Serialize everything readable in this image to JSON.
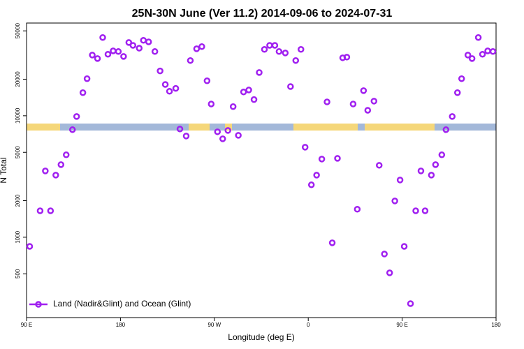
{
  "chart_data": {
    "type": "scatter",
    "title": "25N-30N June (Ver 11.2)   2014-09-06 to 2024-07-31",
    "x_label": "Longitude (deg E)",
    "y_label": "N Total",
    "x": [
      93,
      103,
      108,
      113,
      118,
      123,
      128,
      134,
      138,
      144,
      148,
      153,
      158,
      163,
      168,
      173,
      178,
      183,
      188,
      192,
      198,
      202,
      207,
      213,
      218,
      223,
      227,
      233,
      237,
      243,
      247,
      253,
      258,
      263,
      267,
      273,
      278,
      283,
      288,
      293,
      298,
      303,
      308,
      313,
      318,
      323,
      328,
      332,
      338,
      343,
      348,
      353,
      357,
      363,
      368,
      373,
      378,
      383,
      388,
      393,
      397,
      403,
      407,
      413,
      417,
      423,
      428,
      433,
      438,
      443,
      448,
      452,
      458,
      463,
      468,
      472,
      478,
      482,
      488,
      492,
      498,
      503,
      507,
      513,
      517,
      523,
      527,
      532,
      537
    ],
    "series": [
      {
        "name": "Land (Nadir&Glint) and Ocean (Glint)",
        "color": "#a020f0",
        "values": [
          841,
          1650,
          3515,
          1650,
          3245,
          3960,
          4770,
          7680,
          9860,
          15500,
          20200,
          31600,
          29600,
          44100,
          32100,
          34200,
          33800,
          30800,
          40100,
          38000,
          36000,
          41800,
          40600,
          33800,
          23400,
          18100,
          15900,
          16800,
          7780,
          6810,
          28500,
          35600,
          37100,
          19400,
          12500,
          7380,
          6460,
          7570,
          11900,
          6900,
          15700,
          16300,
          13600,
          22700,
          35200,
          38000,
          38000,
          33800,
          32900,
          17400,
          28500,
          35200,
          5510,
          2700,
          3245,
          4400,
          13000,
          900,
          4460,
          30000,
          30400,
          12500,
          1700,
          16100,
          11100,
          13200,
          3910,
          728,
          509,
          1990,
          2960,
          841,
          284,
          1650,
          3515,
          1650,
          3245,
          3960,
          4770,
          7680,
          9860,
          15500,
          20200,
          31600,
          29600,
          44100,
          32100,
          34200,
          33800
        ]
      }
    ],
    "xlim": [
      90,
      540
    ],
    "xticks": [
      {
        "value": 90,
        "label": "90 E"
      },
      {
        "value": 180,
        "label": "180"
      },
      {
        "value": 270,
        "label": "90 W"
      },
      {
        "value": 360,
        "label": "0"
      },
      {
        "value": 450,
        "label": "90 E"
      },
      {
        "value": 540,
        "label": "180"
      }
    ],
    "ylim": [
      218,
      58000
    ],
    "yticks": [
      500,
      1000,
      2000,
      5000,
      10000,
      20000,
      50000
    ],
    "y_scale": "log",
    "legend": "bottom left"
  }
}
